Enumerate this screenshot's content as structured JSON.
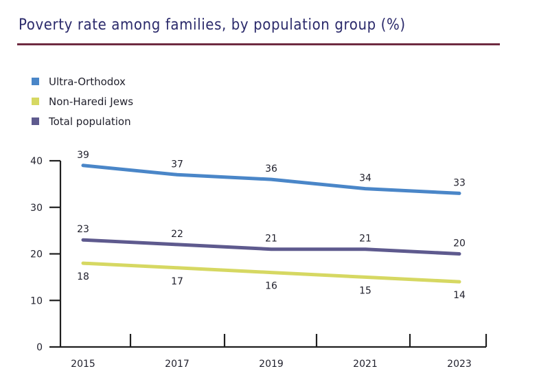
{
  "chart_data": {
    "type": "line",
    "title": "Poverty rate among families, by population group (%)",
    "xlabel": "",
    "ylabel": "",
    "x": [
      "2015",
      "2017",
      "2019",
      "2021",
      "2023"
    ],
    "ylim": [
      0,
      40
    ],
    "yticks": [
      "0",
      "10",
      "20",
      "30",
      "40"
    ],
    "grid": false,
    "legend": "top-left",
    "series": [
      {
        "name": "Ultra-Orthodox",
        "color": "#4a86c8",
        "values": [
          39,
          37,
          36,
          34,
          33
        ],
        "label_pos": "above"
      },
      {
        "name": "Non-Haredi Jews",
        "color": "#d6d862",
        "values": [
          18,
          17,
          16,
          15,
          14
        ],
        "label_pos": "below"
      },
      {
        "name": "Total population",
        "color": "#5e5a8e",
        "values": [
          23,
          22,
          21,
          21,
          20
        ],
        "label_pos": "above"
      }
    ]
  },
  "colors": {
    "title": "#2b2a6b",
    "title_rule": "#6e2a40",
    "axis": "#1f1f1f"
  }
}
